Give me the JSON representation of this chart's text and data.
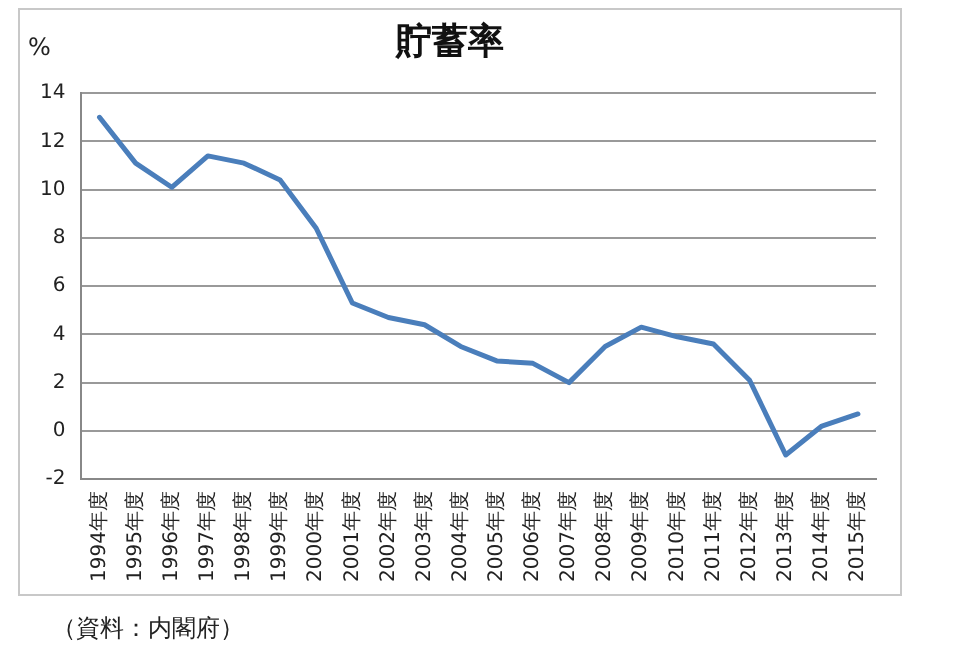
{
  "chart_data": {
    "type": "line",
    "title": "貯蓄率",
    "ylabel": "%",
    "categories": [
      "1994年度",
      "1995年度",
      "1996年度",
      "1997年度",
      "1998年度",
      "1999年度",
      "2000年度",
      "2001年度",
      "2002年度",
      "2003年度",
      "2004年度",
      "2005年度",
      "2006年度",
      "2007年度",
      "2008年度",
      "2009年度",
      "2010年度",
      "2011年度",
      "2012年度",
      "2013年度",
      "2014年度",
      "2015年度"
    ],
    "series": [
      {
        "color": "#4a7ebb",
        "values": [
          13.0,
          11.1,
          10.1,
          11.4,
          11.1,
          10.4,
          8.4,
          5.3,
          4.7,
          4.4,
          3.5,
          2.9,
          2.8,
          2.0,
          3.5,
          4.3,
          3.9,
          3.6,
          2.1,
          -1.0,
          0.2,
          0.7
        ]
      }
    ],
    "ylim": [
      -2,
      14
    ],
    "yticks": [
      -2,
      0,
      2,
      4,
      6,
      8,
      10,
      12,
      14
    ],
    "grid": "y",
    "legend": false,
    "marker": "none",
    "line_style": "solid",
    "annotations": [
      "（資料：内閣府）"
    ]
  }
}
